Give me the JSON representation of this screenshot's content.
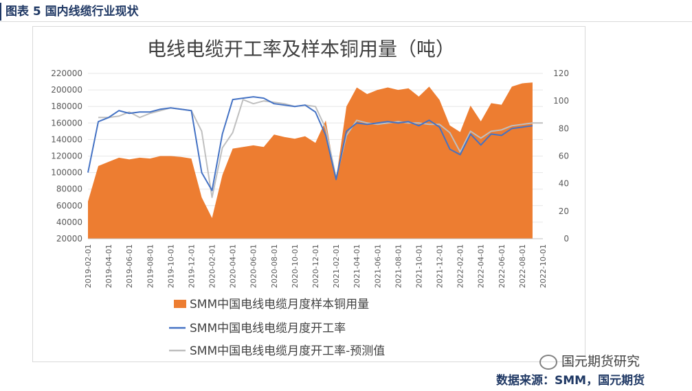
{
  "figure_title": "图表 5 国内线缆行业现状",
  "source_text": "数据来源：SMM，国元期货",
  "watermark_text": "国元期货研究",
  "colors": {
    "area": "#ED7D31",
    "rate": "#4472C4",
    "forecast": "#BFBFBF",
    "title": "#1f3864"
  },
  "chart_data": {
    "type": "area",
    "title": "电线电缆开工率及样本铜用量（吨）",
    "left_axis": {
      "min": 20000,
      "max": 220000,
      "step": 20000,
      "ticks": [
        "220000",
        "200000",
        "180000",
        "160000",
        "140000",
        "120000",
        "100000",
        "80000",
        "60000",
        "40000",
        "20000"
      ]
    },
    "right_axis": {
      "min": 0,
      "max": 120,
      "step": 20,
      "ticks": [
        "120",
        "100",
        "80",
        "60",
        "40",
        "20",
        "0"
      ]
    },
    "x_tick_labels": [
      "2019-02-01",
      "2019-04-01",
      "2019-06-01",
      "2019-08-01",
      "2019-10-01",
      "2019-12-01",
      "2020-02-01",
      "2020-04-01",
      "2020-06-01",
      "2020-08-01",
      "2020-10-01",
      "2020-12-01",
      "2021-02-01",
      "2021-04-01",
      "2021-06-01",
      "2021-08-01",
      "2021-10-01",
      "2021-12-01",
      "2022-02-01",
      "2022-04-01",
      "2022-06-01",
      "2022-08-01",
      "2022-10-01"
    ],
    "x_count": 45,
    "series": [
      {
        "name": "SMM中国电线电缆月度样本铜用量",
        "axis": "left",
        "kind": "area",
        "values": [
          65000,
          108000,
          113000,
          118000,
          116000,
          118000,
          117000,
          120000,
          120000,
          119000,
          117000,
          70000,
          45000,
          97000,
          129000,
          131000,
          133000,
          131000,
          146000,
          143000,
          141000,
          144000,
          136000,
          163000,
          92000,
          180000,
          203000,
          195000,
          200000,
          203000,
          200000,
          202000,
          192000,
          204000,
          188000,
          157000,
          149000,
          181000,
          162000,
          184000,
          182000,
          204000,
          208000,
          209000
        ]
      },
      {
        "name": "SMM中国电线电缆月度开工率",
        "axis": "right",
        "kind": "line",
        "values": [
          48,
          85,
          88,
          93,
          91,
          92,
          92,
          94,
          95,
          94,
          93,
          48,
          35,
          76,
          101,
          102,
          103,
          102,
          98,
          97,
          96,
          97,
          92,
          75,
          43,
          78,
          84,
          83,
          84,
          85,
          84,
          85,
          82,
          86,
          81,
          65,
          61,
          76,
          68,
          76,
          75,
          80,
          81,
          82
        ]
      },
      {
        "name": "SMM中国电线电缆月度开工率-预测值",
        "axis": "right",
        "kind": "line",
        "values": [
          null,
          88,
          88,
          89,
          92,
          88,
          91,
          93,
          95,
          94,
          93,
          78,
          30,
          66,
          77,
          101,
          98,
          100,
          99,
          98,
          96,
          97,
          96,
          80,
          44,
          75,
          86,
          84,
          83,
          84,
          85,
          84,
          84,
          83,
          83,
          77,
          63,
          78,
          73,
          78,
          79,
          82,
          83,
          84,
          84
        ]
      }
    ]
  }
}
